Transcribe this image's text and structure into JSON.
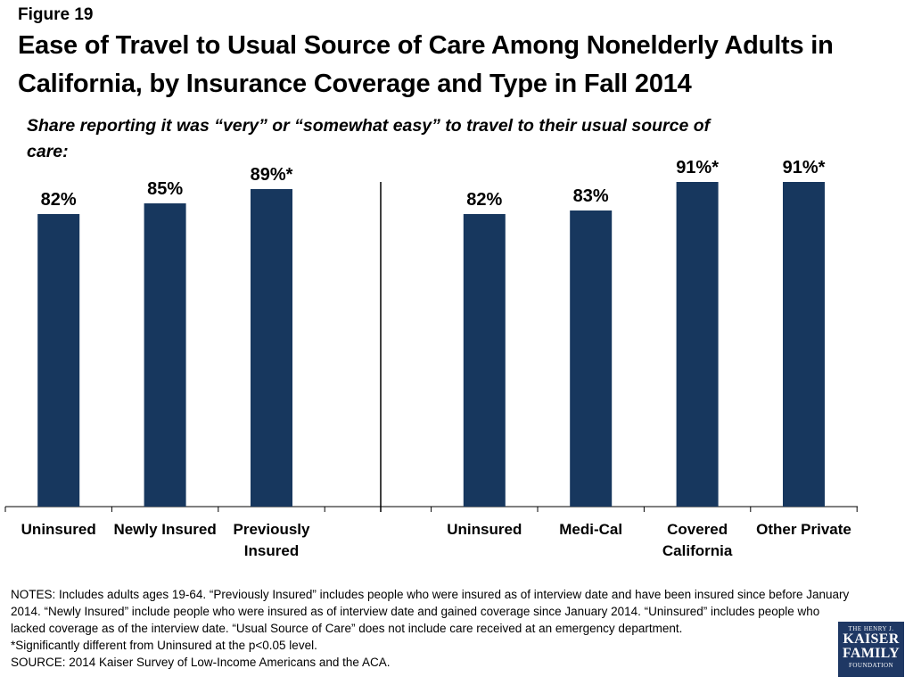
{
  "figure_label": "Figure 19",
  "title": "Ease of Travel to Usual Source of Care Among Nonelderly Adults in California, by Insurance Coverage and Type in Fall 2014",
  "subtitle": "Share reporting it was “very” or “somewhat easy” to travel to their usual source of care:",
  "colors": {
    "bar": "#17375e",
    "axis": "#000000",
    "text": "#000000",
    "logo_bg": "#1f3864"
  },
  "chart_data": {
    "type": "bar",
    "ylim": [
      0,
      100
    ],
    "grid": false,
    "legend": "none",
    "groups": [
      {
        "categories": [
          [
            "Uninsured"
          ],
          [
            "Newly Insured"
          ],
          [
            "Previously",
            "Insured"
          ]
        ],
        "values": [
          82,
          85,
          89
        ],
        "labels": [
          "82%",
          "85%",
          "89%*"
        ]
      },
      {
        "categories": [
          [
            "Uninsured"
          ],
          [
            "Medi-Cal"
          ],
          [
            "Covered",
            "California"
          ],
          [
            "Other Private"
          ]
        ],
        "values": [
          82,
          83,
          91,
          91
        ],
        "labels": [
          "82%",
          "83%",
          "91%*",
          "91%*"
        ]
      }
    ]
  },
  "notes": [
    "NOTES: Includes adults ages 19-64. “Previously Insured” includes people who were insured as of interview date and have been insured since before January 2014. “Newly Insured” include people who were insured as of interview date and gained coverage since January 2014. “Uninsured” includes people who lacked coverage as of the interview date. “Usual Source of Care” does not include care received at an emergency department.",
    "*Significantly different from Uninsured at the p<0.05 level.",
    "SOURCE: 2014 Kaiser Survey of Low-Income Americans and the ACA."
  ],
  "logo": {
    "line1": "THE HENRY J.",
    "line2": "KAISER",
    "line3": "FAMILY",
    "line4": "FOUNDATION"
  }
}
